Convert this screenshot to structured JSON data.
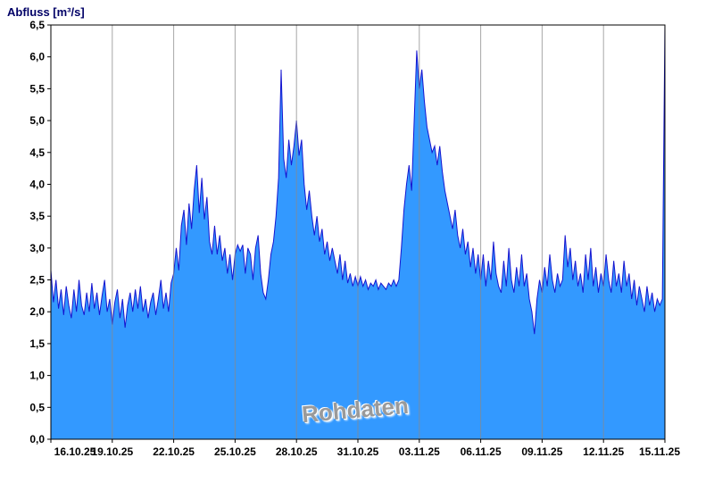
{
  "title": "Abfluss [m³/s]",
  "watermark": "Rohdaten",
  "colors": {
    "fill": "#3399ff",
    "line": "#1515d0",
    "grid": "#8a8a8a",
    "axis": "#000000",
    "title": "#000066",
    "watermark": "#9a9a9a",
    "background": "#ffffff"
  },
  "chart_data": {
    "type": "area",
    "title": "Abfluss [m³/s]",
    "ylabel": "Abfluss [m³/s]",
    "xlabel": "",
    "ylim": [
      0,
      6.5
    ],
    "ytick_step": 0.5,
    "y_tick_labels": [
      "0,0",
      "0,5",
      "1,0",
      "1,5",
      "2,0",
      "2,5",
      "3,0",
      "3,5",
      "4,0",
      "4,5",
      "5,0",
      "5,5",
      "6,0",
      "6,5"
    ],
    "x_tick_labels": [
      "16.10.25",
      "19.10.25",
      "22.10.25",
      "25.10.25",
      "28.10.25",
      "31.10.25",
      "03.11.25",
      "06.11.25",
      "09.11.25",
      "12.11.25",
      "15.11.25"
    ],
    "x_span_days": 30,
    "sample_interval_hours": 3,
    "grid": "vertical-only",
    "legend": "none",
    "annotation": "Rohdaten",
    "values": [
      2.65,
      2.15,
      2.5,
      2.05,
      2.35,
      1.95,
      2.4,
      2.1,
      1.9,
      2.35,
      2.0,
      2.5,
      2.1,
      1.95,
      2.3,
      2.0,
      2.45,
      2.05,
      2.3,
      1.95,
      2.25,
      2.5,
      2.0,
      2.2,
      1.8,
      2.15,
      2.35,
      1.9,
      2.2,
      1.75,
      2.1,
      2.3,
      2.0,
      2.35,
      2.05,
      2.4,
      2.0,
      2.2,
      1.9,
      2.15,
      2.3,
      1.95,
      2.2,
      2.5,
      2.05,
      2.3,
      2.0,
      2.45,
      2.6,
      3.0,
      2.65,
      3.35,
      3.6,
      3.05,
      3.7,
      3.3,
      3.9,
      4.3,
      3.55,
      4.1,
      3.45,
      3.8,
      3.1,
      2.9,
      3.35,
      2.9,
      3.2,
      2.8,
      3.0,
      2.6,
      2.9,
      2.5,
      2.9,
      3.05,
      2.95,
      3.05,
      2.6,
      3.0,
      2.9,
      2.5,
      3.0,
      3.2,
      2.6,
      2.3,
      2.2,
      2.5,
      2.9,
      3.1,
      3.5,
      4.1,
      5.8,
      4.4,
      4.1,
      4.7,
      4.3,
      4.6,
      5.0,
      4.45,
      4.7,
      4.0,
      3.6,
      3.9,
      3.5,
      3.2,
      3.5,
      3.1,
      3.3,
      2.9,
      3.1,
      2.8,
      3.0,
      2.8,
      2.6,
      2.9,
      2.5,
      2.8,
      2.45,
      2.6,
      2.4,
      2.55,
      2.4,
      2.55,
      2.4,
      2.5,
      2.35,
      2.45,
      2.4,
      2.5,
      2.35,
      2.45,
      2.4,
      2.35,
      2.45,
      2.4,
      2.5,
      2.4,
      2.5,
      3.0,
      3.6,
      4.0,
      4.3,
      3.9,
      5.0,
      6.1,
      5.5,
      5.8,
      5.3,
      4.9,
      4.7,
      4.5,
      4.6,
      4.3,
      4.6,
      4.2,
      3.9,
      3.7,
      3.5,
      3.3,
      3.6,
      3.2,
      3.0,
      3.3,
      2.9,
      3.1,
      2.7,
      3.0,
      2.6,
      2.9,
      2.5,
      2.9,
      2.4,
      2.8,
      2.5,
      3.1,
      2.6,
      2.4,
      2.3,
      2.8,
      2.4,
      3.0,
      2.5,
      2.3,
      2.7,
      2.4,
      2.9,
      2.4,
      2.6,
      2.2,
      2.0,
      1.65,
      2.2,
      2.5,
      2.3,
      2.7,
      2.4,
      2.9,
      2.5,
      2.3,
      2.6,
      2.4,
      2.5,
      3.2,
      2.7,
      3.0,
      2.5,
      2.8,
      2.4,
      2.6,
      2.3,
      2.9,
      2.5,
      3.0,
      2.4,
      2.7,
      2.3,
      2.6,
      2.4,
      2.9,
      2.5,
      2.3,
      2.8,
      2.4,
      2.6,
      2.3,
      2.8,
      2.4,
      2.6,
      2.2,
      2.5,
      2.1,
      2.4,
      2.2,
      2.0,
      2.4,
      2.1,
      2.3,
      2.0,
      2.2,
      2.1,
      2.2,
      6.6
    ]
  }
}
